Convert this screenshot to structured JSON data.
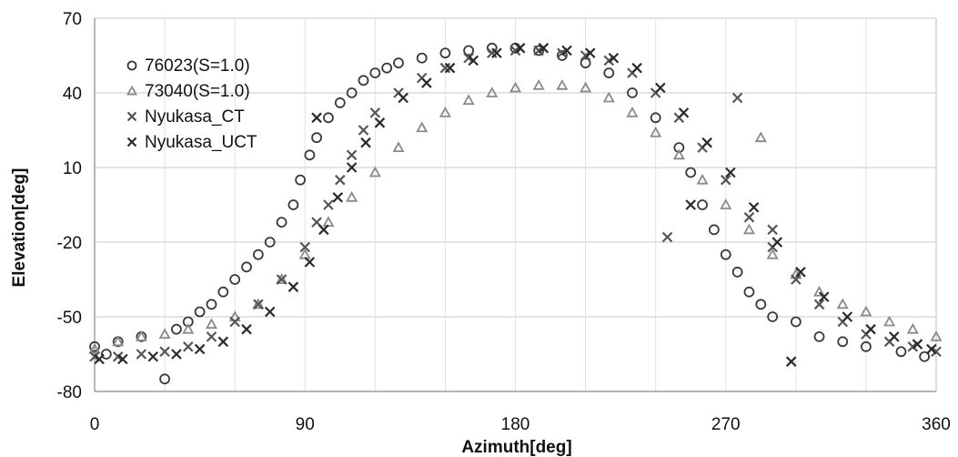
{
  "chart_data": {
    "type": "scatter",
    "title": "",
    "xlabel": "Azimuth[deg]",
    "ylabel": "Elevation[deg]",
    "xlim": [
      0,
      360
    ],
    "ylim": [
      -80,
      70
    ],
    "x_ticks": [
      "0",
      "90",
      "180",
      "270",
      "360"
    ],
    "y_ticks": [
      "70",
      "40",
      "10",
      "-20",
      "-50",
      "-80"
    ],
    "grid": true,
    "legend_position": "top-left",
    "colors": {
      "76023(S=1.0)": "#3a3a3a",
      "73040(S=1.0)": "#8a8a8a",
      "Nyukasa_CT": "#555555",
      "Nyukasa_UCT": "#2a2a2a"
    },
    "series": [
      {
        "name": "76023(S=1.0)",
        "marker": "circle",
        "points": [
          [
            0,
            -62
          ],
          [
            5,
            -65
          ],
          [
            10,
            -60
          ],
          [
            20,
            -58
          ],
          [
            30,
            -75
          ],
          [
            35,
            -55
          ],
          [
            40,
            -52
          ],
          [
            45,
            -48
          ],
          [
            50,
            -45
          ],
          [
            55,
            -40
          ],
          [
            60,
            -35
          ],
          [
            65,
            -30
          ],
          [
            70,
            -25
          ],
          [
            75,
            -20
          ],
          [
            80,
            -12
          ],
          [
            85,
            -5
          ],
          [
            88,
            5
          ],
          [
            92,
            15
          ],
          [
            95,
            22
          ],
          [
            100,
            30
          ],
          [
            105,
            36
          ],
          [
            110,
            40
          ],
          [
            115,
            45
          ],
          [
            120,
            48
          ],
          [
            125,
            50
          ],
          [
            130,
            52
          ],
          [
            140,
            54
          ],
          [
            150,
            56
          ],
          [
            160,
            57
          ],
          [
            170,
            58
          ],
          [
            180,
            58
          ],
          [
            190,
            57
          ],
          [
            200,
            55
          ],
          [
            210,
            52
          ],
          [
            220,
            48
          ],
          [
            230,
            40
          ],
          [
            240,
            30
          ],
          [
            250,
            18
          ],
          [
            255,
            8
          ],
          [
            260,
            -5
          ],
          [
            265,
            -15
          ],
          [
            270,
            -25
          ],
          [
            275,
            -32
          ],
          [
            280,
            -40
          ],
          [
            285,
            -45
          ],
          [
            290,
            -50
          ],
          [
            300,
            -52
          ],
          [
            310,
            -58
          ],
          [
            320,
            -60
          ],
          [
            330,
            -62
          ],
          [
            345,
            -64
          ],
          [
            355,
            -66
          ]
        ]
      },
      {
        "name": "73040(S=1.0)",
        "marker": "triangle",
        "points": [
          [
            0,
            -63
          ],
          [
            10,
            -60
          ],
          [
            20,
            -58
          ],
          [
            30,
            -57
          ],
          [
            40,
            -55
          ],
          [
            50,
            -53
          ],
          [
            60,
            -50
          ],
          [
            70,
            -45
          ],
          [
            80,
            -35
          ],
          [
            90,
            -25
          ],
          [
            100,
            -12
          ],
          [
            110,
            -2
          ],
          [
            120,
            8
          ],
          [
            130,
            18
          ],
          [
            140,
            26
          ],
          [
            150,
            32
          ],
          [
            160,
            37
          ],
          [
            170,
            40
          ],
          [
            180,
            42
          ],
          [
            190,
            43
          ],
          [
            200,
            43
          ],
          [
            210,
            42
          ],
          [
            220,
            38
          ],
          [
            230,
            32
          ],
          [
            240,
            24
          ],
          [
            250,
            15
          ],
          [
            260,
            5
          ],
          [
            270,
            -5
          ],
          [
            280,
            -15
          ],
          [
            290,
            -25
          ],
          [
            300,
            -33
          ],
          [
            310,
            -40
          ],
          [
            320,
            -45
          ],
          [
            330,
            -48
          ],
          [
            340,
            -52
          ],
          [
            350,
            -55
          ],
          [
            360,
            -58
          ],
          [
            285,
            22
          ]
        ]
      },
      {
        "name": "Nyukasa_CT",
        "marker": "x",
        "points": [
          [
            0,
            -66
          ],
          [
            10,
            -66
          ],
          [
            20,
            -65
          ],
          [
            30,
            -64
          ],
          [
            40,
            -62
          ],
          [
            50,
            -58
          ],
          [
            60,
            -52
          ],
          [
            70,
            -45
          ],
          [
            80,
            -35
          ],
          [
            90,
            -22
          ],
          [
            95,
            -12
          ],
          [
            100,
            -5
          ],
          [
            105,
            5
          ],
          [
            110,
            15
          ],
          [
            115,
            25
          ],
          [
            120,
            32
          ],
          [
            130,
            40
          ],
          [
            140,
            46
          ],
          [
            150,
            50
          ],
          [
            160,
            54
          ],
          [
            170,
            56
          ],
          [
            180,
            57
          ],
          [
            190,
            57
          ],
          [
            200,
            56
          ],
          [
            210,
            55
          ],
          [
            220,
            53
          ],
          [
            230,
            48
          ],
          [
            240,
            40
          ],
          [
            250,
            30
          ],
          [
            260,
            18
          ],
          [
            270,
            5
          ],
          [
            280,
            -10
          ],
          [
            290,
            -22
          ],
          [
            300,
            -35
          ],
          [
            310,
            -45
          ],
          [
            320,
            -52
          ],
          [
            330,
            -57
          ],
          [
            340,
            -60
          ],
          [
            350,
            -62
          ],
          [
            360,
            -64
          ],
          [
            275,
            38
          ],
          [
            245,
            -18
          ],
          [
            290,
            -15
          ]
        ]
      },
      {
        "name": "Nyukasa_UCT",
        "marker": "x",
        "points": [
          [
            2,
            -67
          ],
          [
            12,
            -67
          ],
          [
            25,
            -66
          ],
          [
            35,
            -65
          ],
          [
            45,
            -63
          ],
          [
            55,
            -60
          ],
          [
            65,
            -55
          ],
          [
            75,
            -48
          ],
          [
            85,
            -38
          ],
          [
            92,
            -28
          ],
          [
            98,
            -15
          ],
          [
            104,
            -2
          ],
          [
            110,
            10
          ],
          [
            116,
            20
          ],
          [
            122,
            28
          ],
          [
            132,
            38
          ],
          [
            142,
            44
          ],
          [
            152,
            50
          ],
          [
            162,
            53
          ],
          [
            172,
            56
          ],
          [
            182,
            58
          ],
          [
            192,
            58
          ],
          [
            202,
            57
          ],
          [
            212,
            56
          ],
          [
            222,
            54
          ],
          [
            232,
            50
          ],
          [
            242,
            42
          ],
          [
            252,
            32
          ],
          [
            262,
            20
          ],
          [
            272,
            8
          ],
          [
            282,
            -6
          ],
          [
            292,
            -20
          ],
          [
            302,
            -32
          ],
          [
            312,
            -42
          ],
          [
            322,
            -50
          ],
          [
            332,
            -55
          ],
          [
            342,
            -58
          ],
          [
            352,
            -61
          ],
          [
            358,
            -63
          ],
          [
            95,
            30
          ],
          [
            298,
            -68
          ],
          [
            255,
            -5
          ]
        ]
      }
    ]
  }
}
